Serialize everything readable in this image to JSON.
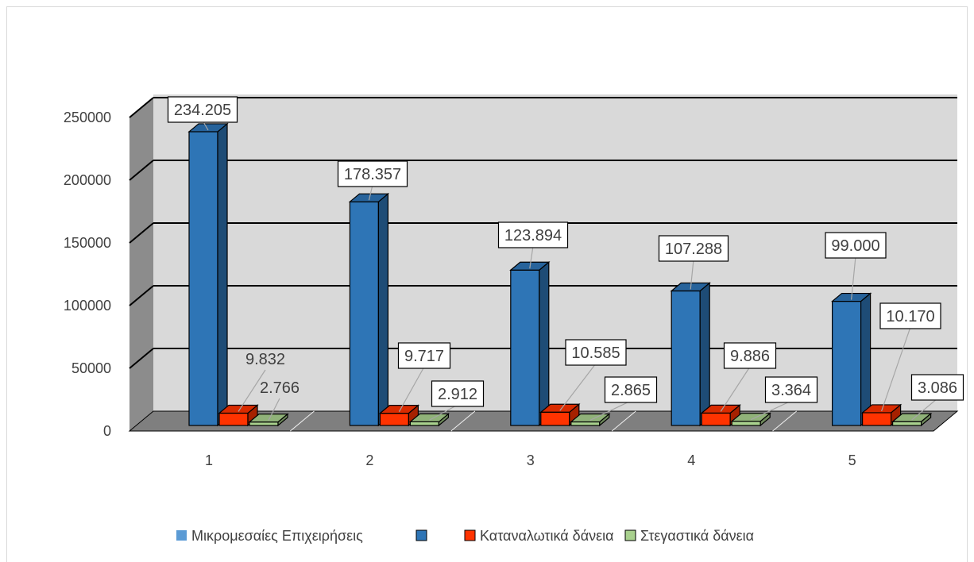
{
  "chart_data": {
    "type": "bar",
    "categories": [
      "1",
      "2",
      "3",
      "4",
      "5"
    ],
    "series": [
      {
        "name": "Μικρομεσαίες Επιχειρήσεις",
        "values": [
          234205,
          178357,
          123894,
          107288,
          99000
        ],
        "labels": [
          "234.205",
          "178.357",
          "123.894",
          "107.288",
          "99.000"
        ],
        "color": "#2e75b6"
      },
      {
        "name": "Καταναλωτικά δάνεια",
        "values": [
          9832,
          9717,
          10585,
          9886,
          10170
        ],
        "labels": [
          "9.832",
          "9.717",
          "10.585",
          "9.886",
          "10.170"
        ],
        "color": "#ff3300"
      },
      {
        "name": "Στεγαστικά δάνεια",
        "values": [
          2766,
          2912,
          2865,
          3364,
          3086
        ],
        "labels": [
          "2.766",
          "2.912",
          "2.865",
          "3.364",
          "3.086"
        ],
        "color": "#a9d18e"
      }
    ],
    "y_ticks": [
      "0",
      "50000",
      "100000",
      "150000",
      "200000",
      "250000"
    ],
    "ylim": [
      0,
      250000
    ],
    "grid": true,
    "three_d": true,
    "legend_position": "bottom",
    "legend_entries": [
      {
        "label": "Μικρομεσαίες Επιχειρήσεις",
        "color": "#5b9bd5"
      },
      {
        "label": "",
        "color": "#2e75b6"
      },
      {
        "label": "Καταναλωτικά δάνεια",
        "color": "#ff3300"
      },
      {
        "label": "Στεγαστικά δάνεια",
        "color": "#a9d18e"
      }
    ],
    "wall_color": "#d9d9d9",
    "side_wall_color": "#8c8c8c",
    "floor_color": "#7f7f7f"
  }
}
